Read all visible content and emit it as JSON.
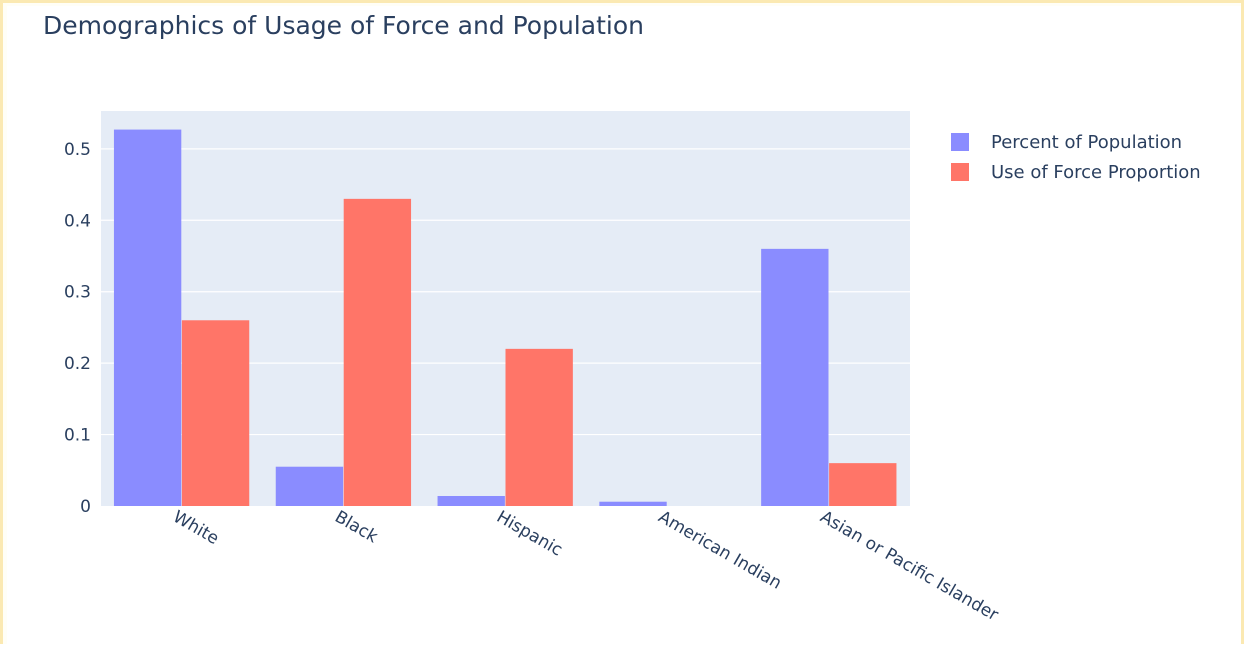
{
  "chart_data": {
    "type": "bar",
    "title": "Demographics of Usage of Force and Population",
    "xlabel": "",
    "ylabel": "",
    "categories": [
      "White",
      "Black",
      "Hispanic",
      "American Indian",
      "Asian or Pacific Islander"
    ],
    "series": [
      {
        "name": "Percent of Population",
        "color": "#8a8cff",
        "values": [
          0.527,
          0.055,
          0.014,
          0.006,
          0.36
        ]
      },
      {
        "name": "Use of Force Proportion",
        "color": "#ff7568",
        "values": [
          0.26,
          0.43,
          0.22,
          0.0,
          0.06
        ]
      }
    ],
    "ylim": [
      0,
      0.553
    ],
    "yticks": [
      0,
      0.1,
      0.2,
      0.3,
      0.4,
      0.5
    ],
    "ytick_labels": [
      "0",
      "0.1",
      "0.2",
      "0.3",
      "0.4",
      "0.5"
    ],
    "grid": true,
    "plot_background": "#e5ecf6",
    "legend_position": "right"
  }
}
